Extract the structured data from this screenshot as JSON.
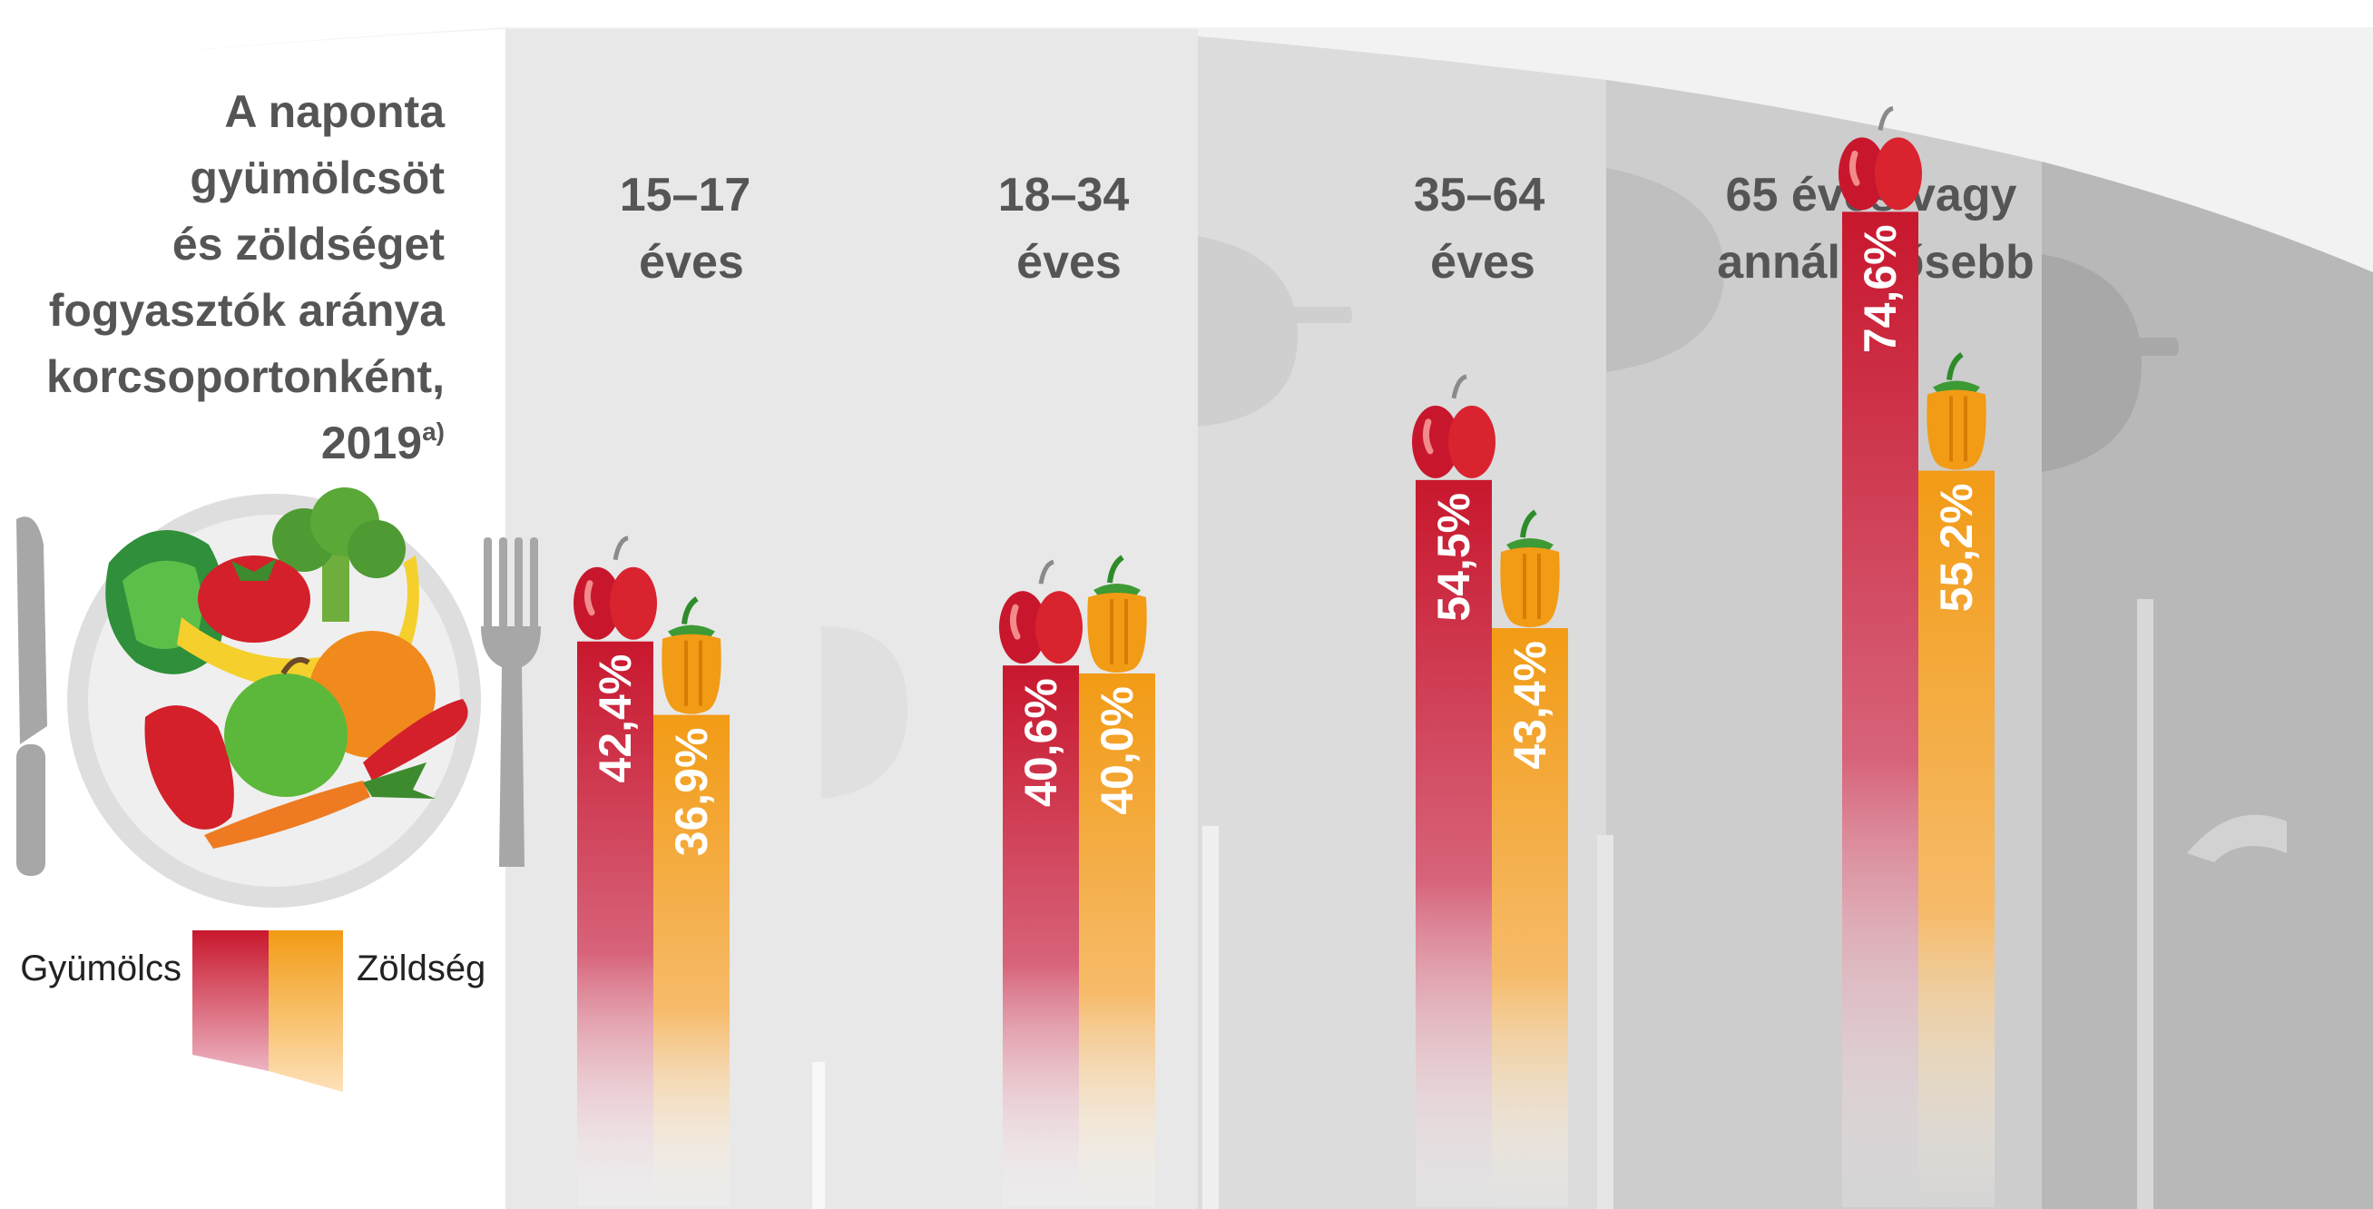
{
  "title": {
    "lines": [
      "A naponta",
      "gyümölcsöt",
      "és zöldséget",
      "fogyasztók aránya",
      "korcsoportonként,",
      "2019"
    ],
    "footnote_mark": "a)"
  },
  "legend": {
    "fruit_label": "Gyümölcs",
    "vegetable_label": "Zöldség"
  },
  "colors": {
    "fruit": "#c8172d",
    "vegetable": "#f29b15",
    "silhouette_1": "#f2f2f2",
    "silhouette_2": "#e6e6e6",
    "silhouette_3": "#d9d9d9",
    "silhouette_4": "#c9c9c9",
    "silhouette_5": "#b3b3b3"
  },
  "icons": [
    "plate-with-fruit-and-vegetables",
    "knife-icon",
    "fork-icon",
    "apple-icon",
    "pepper-icon"
  ],
  "chart_data": {
    "type": "bar",
    "categories": [
      [
        "15–17",
        "éves"
      ],
      [
        "18–34",
        "éves"
      ],
      [
        "35–64",
        "éves"
      ],
      [
        "65 éves vagy",
        "annál idősebb"
      ]
    ],
    "series": [
      {
        "name": "Gyümölcs",
        "values": [
          42.4,
          40.6,
          54.5,
          74.6
        ],
        "labels": [
          "42,4%",
          "40,6%",
          "54,5%",
          "74,6%"
        ]
      },
      {
        "name": "Zöldség",
        "values": [
          36.9,
          40.0,
          43.4,
          55.2
        ],
        "labels": [
          "36,9%",
          "40,0%",
          "43,4%",
          "55,2%"
        ]
      }
    ],
    "unit": "%",
    "ylim": [
      0,
      100
    ],
    "grid": false,
    "legend": "bottom-left"
  }
}
